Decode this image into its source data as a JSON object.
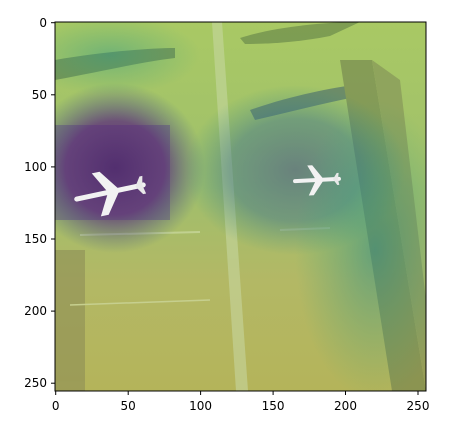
{
  "figure": {
    "kind": "image with heatmap overlay",
    "content": "aerial view of airport apron with airplanes",
    "colormap": "viridis",
    "axes_frame_color": "#000000"
  },
  "x_axis": {
    "range": [
      0,
      256
    ],
    "ticks": [
      {
        "value": 0,
        "label": "0"
      },
      {
        "value": 50,
        "label": "50"
      },
      {
        "value": 100,
        "label": "100"
      },
      {
        "value": 150,
        "label": "150"
      },
      {
        "value": 200,
        "label": "200"
      },
      {
        "value": 250,
        "label": "250"
      }
    ]
  },
  "y_axis": {
    "range": [
      0,
      256
    ],
    "inverted": true,
    "ticks": [
      {
        "value": 0,
        "label": "0"
      },
      {
        "value": 50,
        "label": "50"
      },
      {
        "value": 100,
        "label": "100"
      },
      {
        "value": 150,
        "label": "150"
      },
      {
        "value": 200,
        "label": "200"
      },
      {
        "value": 250,
        "label": "250"
      }
    ]
  }
}
